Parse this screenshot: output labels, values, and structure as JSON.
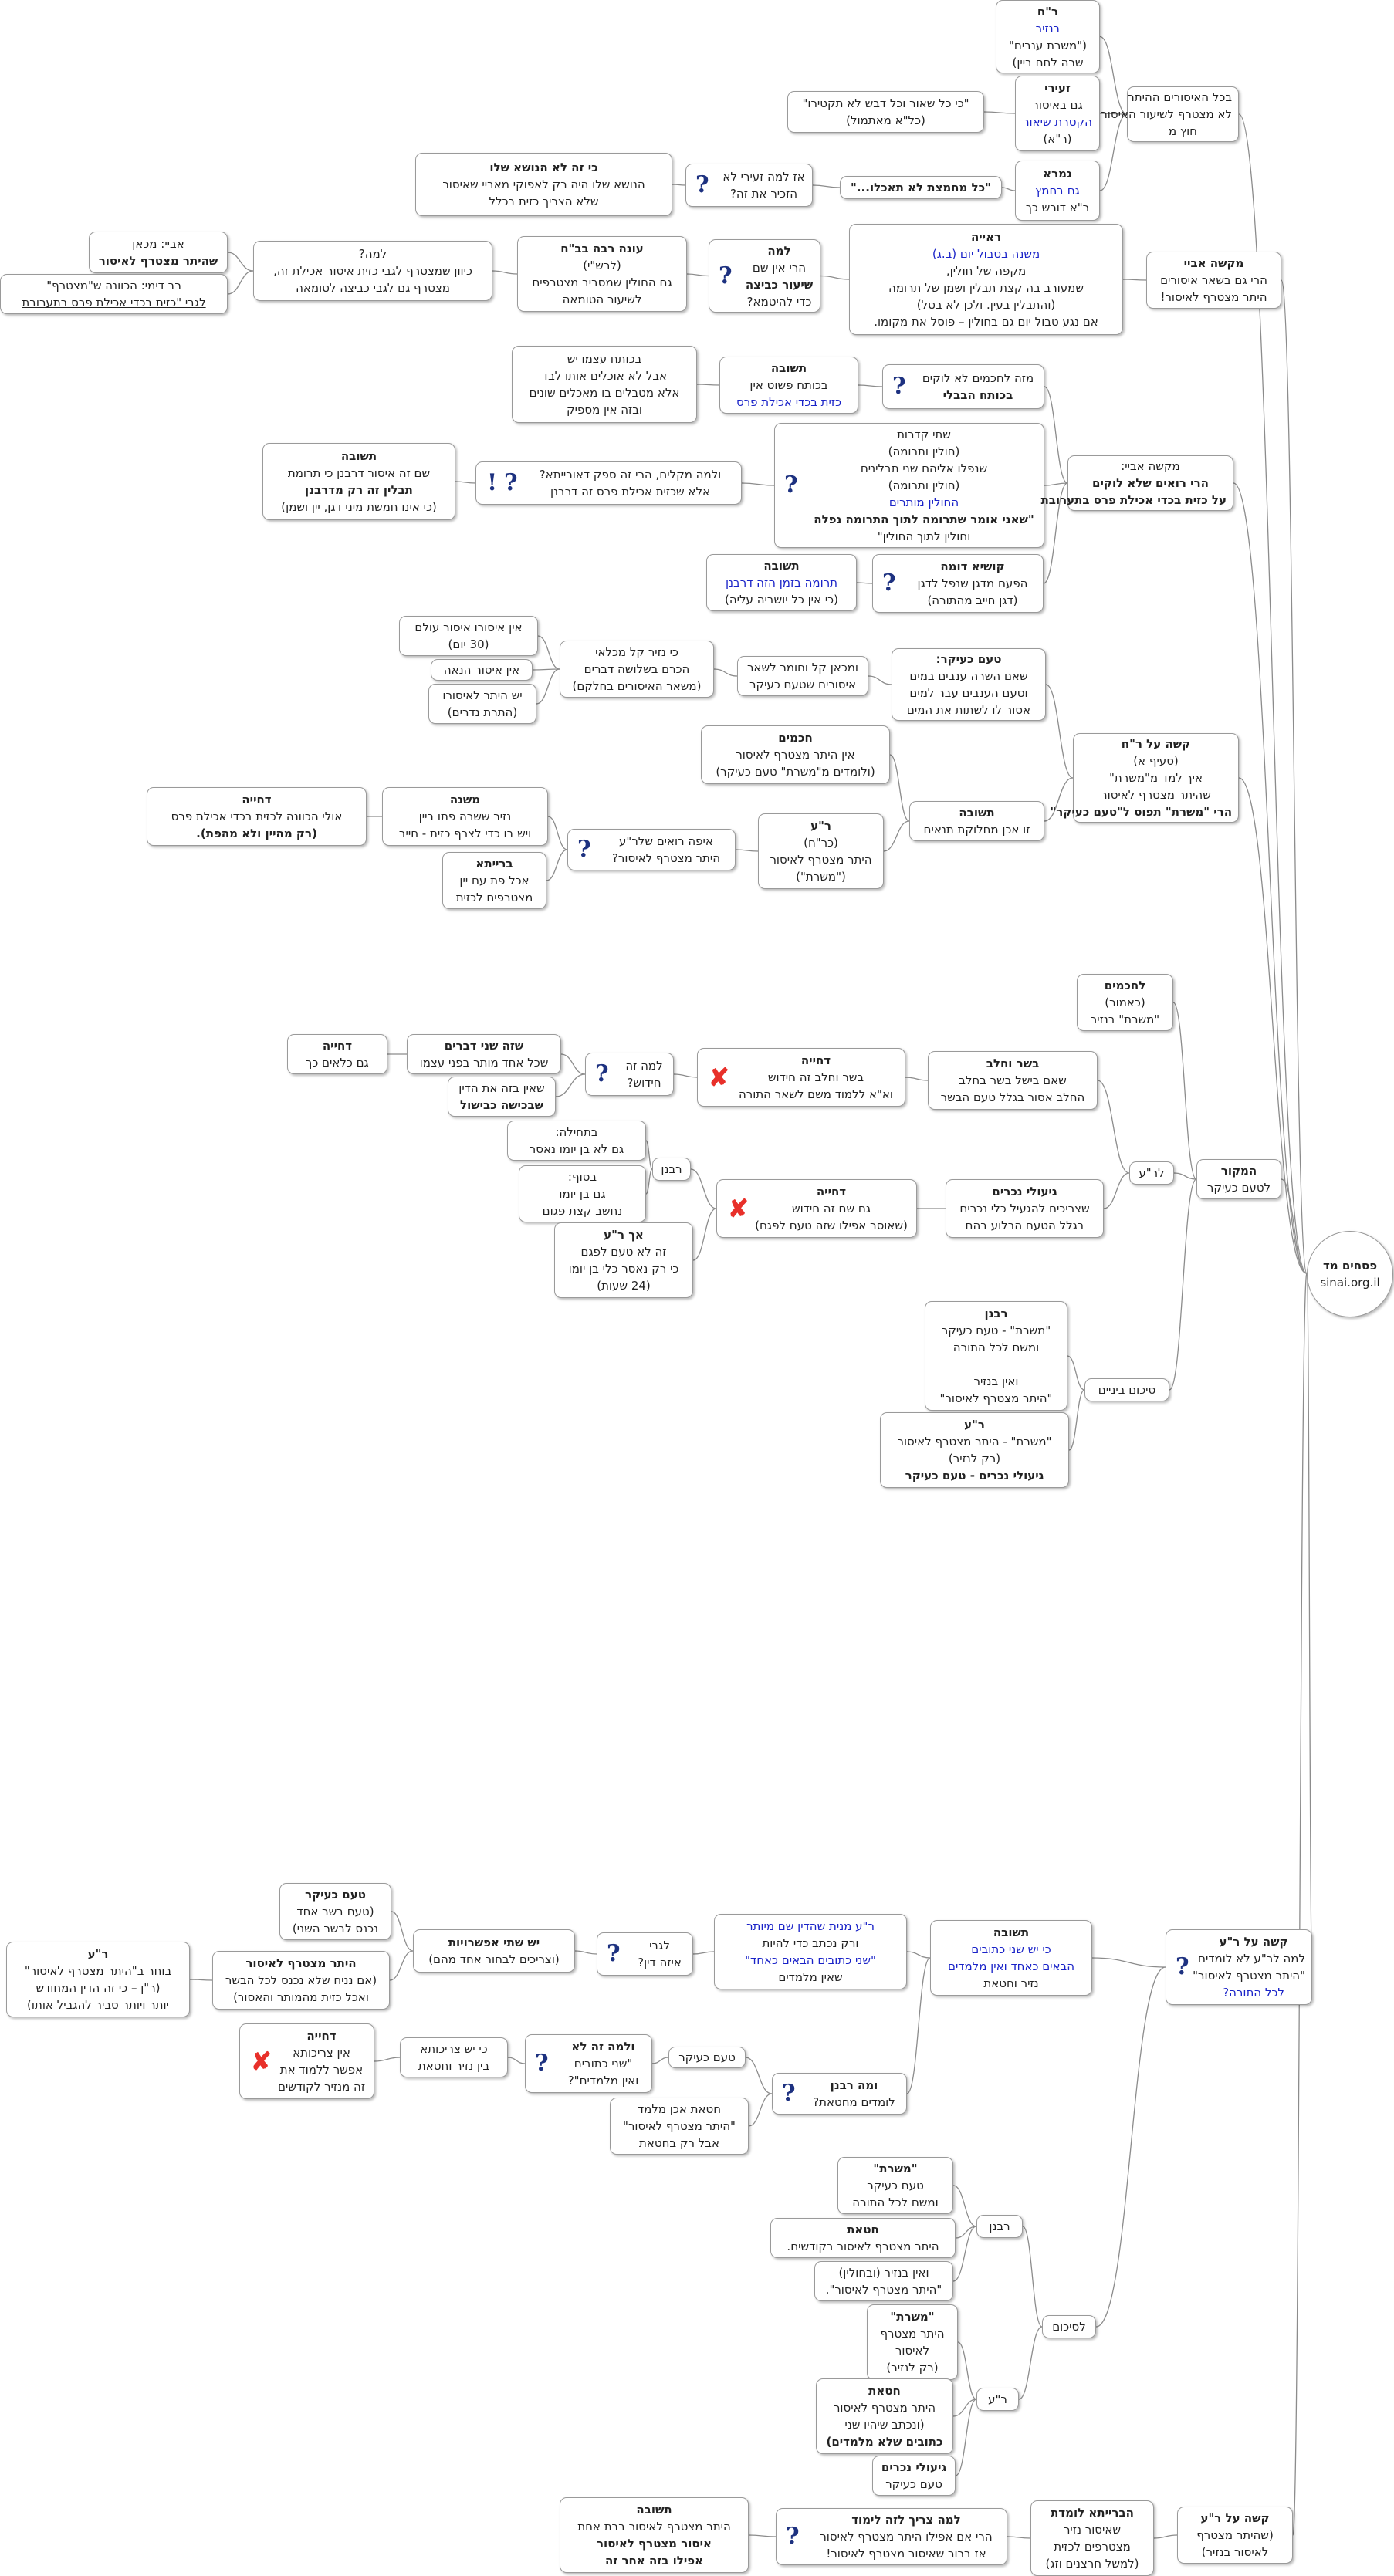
{
  "root": {
    "title": "פסחים מד",
    "subtitle": "sinai.org.il"
  },
  "nodes": {
    "n1": [
      "ר\"ח",
      "בנזיר",
      "(\"משרת ענבים\"",
      "שרה לחם ביין)"
    ],
    "n2": [
      "בכל האיסורים ההיתר",
      "לא מצטרף לשיעור האיסור",
      "חוץ מ"
    ],
    "n3": [
      "זעירי",
      "גם באיסור",
      "הקטרת שיאור",
      "(ר\"א)"
    ],
    "n4": [
      "\"כי כל שאור וכל דבש לא תקטירו\"",
      "(כל\"א מאתמול)"
    ],
    "n5": [
      "גמרא",
      "גם בחמץ",
      "ר\"א דורש כך"
    ],
    "n6": [
      "\"כל מחמצת לא תאכלו...\""
    ],
    "n7": [
      "אז למה זעירי לא",
      "הזכיר את זה?"
    ],
    "n8": [
      "כי זה לא הנושא שלו",
      "הנושא שלו היה רק לאפוקי מאביי שאיסור",
      "שלא הצריך כזית בכלל"
    ],
    "n9": [
      "ראייה",
      "משנה בטבול יום (ב.ג)",
      "מקפה של חולין,",
      "שמעורב בה קצת תבלין ושמן של תרומה",
      "(והתבלין בעין. ולכן לא בטל)",
      "אם נגע טבול יום גם בחולין – פוסל את מקומו."
    ],
    "n10": [
      "מקשה אביי",
      "הרי גם בשאר איסורים",
      "היתר מצטרף לאיסור!"
    ],
    "n11": [
      "למה",
      "הרי אין שם",
      "שיעור כביצה",
      "כדי להיטמא?"
    ],
    "n12": [
      "עונה רבה בב\"ח",
      "(לרש\"י)",
      "גם החולין שמסביב מצטרפים",
      "לשיעור הטומאה"
    ],
    "n13": [
      "למה?",
      "כיוון שמצטרף לגבי כזית איסור אכילת זה,",
      "מצטרף גם לגבי כביצה לטומאה"
    ],
    "n14": [
      "אביי: מכאן",
      "שהיתר מצטרף לאיסור"
    ],
    "n15": [
      "רב דימי: הכוונה ש\"מצטרף\"",
      "לגבי \"כזית בכדי אכילת פרס בתערובת"
    ],
    "n16": [
      "מזה לחכמים לא לוקים",
      "בכותח הבבלי"
    ],
    "n17": [
      "תשובה",
      "בכותח פשוט אין",
      "כזית בכדי אכילת פרס"
    ],
    "n18": [
      "בכותח עצמו יש",
      "אבל לא אוכלים אותו לבד",
      "אלא מטבלים בו מאכלים שונים",
      "ובזה אין מספיק"
    ],
    "n19": [
      "שתי קדרות",
      "(חולין ותרומה)",
      "שנפלו אליהם שני תבלינים",
      "(חולין ותרומה)",
      "החולין מותרים",
      "\"שאני אומר שתרומה לתוך התרומה נפלה",
      "וחולין לתוך החולין\""
    ],
    "n20": [
      "מקשה אביי:",
      "הרי רואים שלא לוקים",
      "על כזית בכדי אכילת פרס בתערובת"
    ],
    "n21": [
      "ולמה מקלים, הרי זה ספק דאורייתא?",
      "אלא שכזית אכילת פרס זה דרבנן"
    ],
    "n22": [
      "תשובה",
      "שם זה איסור דרבנן כי תרומת",
      "תבלין זה רק מדרבנן",
      "(כי אינו חמשת מיני דגן, יין ושמן)"
    ],
    "n23": [
      "קושיא דומה",
      "הפעם מדגן שנפל לדגן",
      "(דגן חייב מהתורה)"
    ],
    "n24": [
      "תשובה",
      "תרומה בזמן הזה דרבנן",
      "(כי אין כל יושביה עליה)"
    ],
    "n25": [
      "טעם כעיקר:",
      "שאם השרה ענבים במים",
      "וטעם הענבים עבר למים",
      "אסור לו לשתות את המים"
    ],
    "n26": [
      "ומכאן קל וחומר לשאר",
      "איסורים שטעם כעיקר"
    ],
    "n27": [
      "כי נזיר קל מכלאי",
      "הכרם בשלושה דברים",
      "(משאר האיסורים בחלקם)"
    ],
    "n28": [
      "אין איסורו איסור עולם",
      "(30 יום)"
    ],
    "n29": [
      "אין איסור הנאה"
    ],
    "n30": [
      "יש היתר לאיסורו",
      "(התרת נדרים)"
    ],
    "n31": [
      "קשה על ר\"ח",
      "(סעיף א)",
      "איך למד מ\"משרת\"",
      "שהיתר מצטרף לאיסור",
      "הרי \"משרת\" תפוס ל\"טעם כעיקר\""
    ],
    "n32": [
      "חכמים",
      "אין היתר מצטרף לאיסור",
      "(ולומדים מ\"משרת\" טעם כעיקר)"
    ],
    "n33": [
      "תשובה",
      "זו אכן מחלוקת תנאים"
    ],
    "n34": [
      "ר\"ע",
      "(כר\"ח)",
      "היתר מצטרף לאיסור",
      "(\"משרת\")"
    ],
    "n35": [
      "איפה רואים שלר\"ע",
      "היתר מצטרף לאיסור?"
    ],
    "n36": [
      "משנה",
      "נזיר ששרה פתו ביין",
      "ויש בו כדי לצרף כזית - חייב"
    ],
    "n37": [
      "דחייה",
      "אולי הכוונה לכזית בכדי אכילת פרס",
      "(רק מהיין ולא מהפת)."
    ],
    "n38": [
      "ברייתא",
      "אכל פת עם יין",
      "מצטרפים לכזית"
    ],
    "n39": [
      "לחכמים",
      "(כאמור)",
      "\"משרת\" בנזיר"
    ],
    "n40": [
      "בשר וחלב",
      "שאם בישל בשר בחלב",
      "החלב אסור בגלל טעם הבשר"
    ],
    "n41": [
      "דחייה",
      "בשר וחלב זה חידוש",
      "וא\"א ללמוד משם לשאר התורה"
    ],
    "n42": [
      "למה זה",
      "חידוש?"
    ],
    "n43": [
      "שזה שני דברים",
      "שכל אחד מותר בפני עצמו"
    ],
    "n44": [
      "דחייה",
      "גם כלאים כך"
    ],
    "n45": [
      "שאין בזה את הדין",
      "שבכישה כבישול"
    ],
    "n46": [
      "המקור",
      "לטעם כעיקר"
    ],
    "n47": [
      "לר\"ע"
    ],
    "n48": [
      "גיעולי נכרים",
      "שצריכים להגעיל כלי נכרים",
      "בגלל הטעם הבלוע בהם"
    ],
    "n49": [
      "דחייה",
      "גם שם זה חידוש",
      "(שאוסר אפילו שזה טעם לפגם)"
    ],
    "n50": [
      "רבנן"
    ],
    "n51": [
      "בתחילה:",
      "גם לא בן יומו נאסר"
    ],
    "n52": [
      "בסוף:",
      "גם בן יומו",
      "נחשב קצת פגום"
    ],
    "n53": [
      "אך ר\"ע",
      "זה לא טעם לפגם",
      "כי רק נאסר כלי בן יומו",
      "(24 שעות)"
    ],
    "n54": [
      "סיכום ביניים"
    ],
    "n55": [
      "רבנן",
      "\"משרת\" - טעם כעיקר",
      "ומשם לכל התורה",
      "",
      "ואין בנזיר",
      "\"היתר מצטרף לאיסור\""
    ],
    "n56": [
      "ר\"ע",
      "\"משרת\" - היתר מצטרף לאיסור",
      "(רק לנזיר)",
      "גיעולי נכרים  -  טעם כעיקר"
    ],
    "n57": [
      "קשה על ר\"ע",
      "למה לר\"ע לא לומדים",
      "\"היתר מצטרף לאיסור\"",
      "לכל התורה?"
    ],
    "n58": [
      "תשובה",
      "כי יש שני כתובים",
      "הבאים כאחד ואין מלמדים",
      "נזיר וחטאת"
    ],
    "n59": [
      "ר\"ע מנית שהדין שם מיותר",
      "ורק נכתב כדי להיות",
      "\"שני כתובים הבאים כאחד\"",
      "שאין מלמדים"
    ],
    "n60": [
      "לגבי",
      "איזה דין?"
    ],
    "n61": [
      "יש שתי אפשרויות",
      "(וצריכים לבחור אחד מהם)"
    ],
    "n62": [
      "טעם כעיקר",
      "(טעם בשר אחד",
      "נכנס לבשר השני)"
    ],
    "n63": [
      "היתר מצטרף לאיסור",
      "(אם נניח שלא נכנס לכל הבשר",
      "ואכל כזית מהמותר והאסור)"
    ],
    "n64": [
      "ר\"ע",
      "בוחר ב\"היתר מצטרף לאיסור\"",
      "(ר\"ן – כי זה הדין המחודש",
      "יותר ויותר סביר להגביל אותו)"
    ],
    "n65": [
      "ומה רבנן",
      "לומדים מחטאת?"
    ],
    "n66": [
      "טעם כעיקר"
    ],
    "n67": [
      "ולמה זה לא",
      "\"שני כתובים",
      "ואין מלמדים\"?"
    ],
    "n68": [
      "כי יש צריכותא",
      "בין נזיר וחטאת"
    ],
    "n69": [
      "דחייה",
      "אין צריכותא",
      "אפשר ללמוד את",
      "זה מנזיר לקודשים"
    ],
    "n70": [
      "חטאת אכן מלמד",
      "\"היתר מצטרף לאיסור\"",
      "אבל רק בחטאת"
    ],
    "n71": [
      "לסיכום"
    ],
    "n72": [
      "רבנן"
    ],
    "n73": [
      "\"משרת\"",
      "טעם כעיקר",
      "ומשם לכל התורה"
    ],
    "n74": [
      "חטאת",
      "היתר מצטרף לאיסור בקודשים."
    ],
    "n75": [
      "ואין בנזיר (ובחולין)",
      "\"היתר מצטרף לאיסור\"."
    ],
    "n76": [
      "ר\"ע"
    ],
    "n77": [
      "\"משרת\"",
      "היתר מצטרף",
      "לאיסור",
      "(רק לנזיר)"
    ],
    "n78": [
      "חטאת",
      "היתר מצטרף לאיסור",
      "(ונכתב שיהיו שני",
      "כתובים שלא מלמדים)"
    ],
    "n79": [
      "גיעולי נכרים",
      "טעם כעיקר"
    ],
    "n80": [
      "קשה על ר\"ע",
      "(שהיתר מצטרף",
      "לאיסור בנזיר)"
    ],
    "n81": [
      "הברייתא לומדת",
      "שאיסור נזיר",
      "מצטרפים לכזית",
      "(למשל חרצנים וזג)"
    ],
    "n82": [
      "למה צריך לזה לימוד",
      "הרי אם אפילו היתר מצטרף לאיסור",
      "אז ברור שאיסור מצטרף לאיסור!"
    ],
    "n83": [
      "תשובה",
      "היתר מצטרף לאיסור בבת אחת",
      "איסור מצטרף לאיסור",
      "אפילו בזה אחר זה"
    ]
  }
}
